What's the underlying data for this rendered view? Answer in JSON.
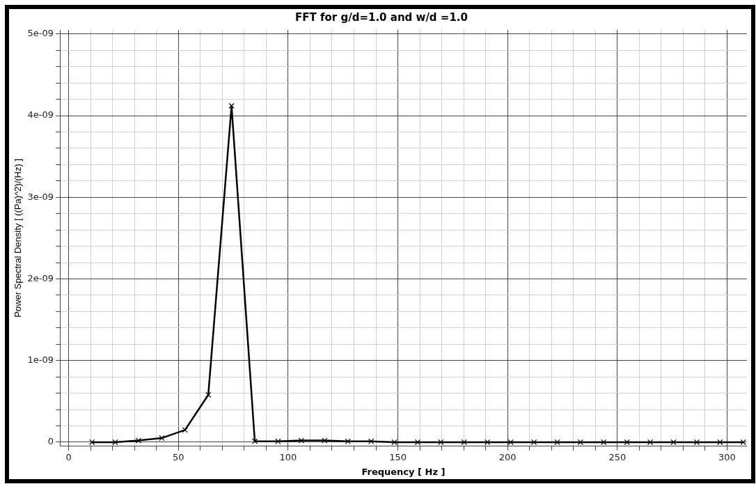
{
  "chart_data": {
    "type": "line",
    "title": "FFT for g/d=1.0 and w/d =1.0",
    "xlabel": "Frequency [ Hz ]",
    "ylabel": "Power Spectral Density [ ((Pa)^2)/(Hz) ]",
    "x": [
      10.6,
      21.2,
      31.8,
      42.4,
      53,
      63.6,
      74.2,
      84.8,
      95.4,
      106,
      116.6,
      127.2,
      137.8,
      148.4,
      159,
      169.6,
      180.2,
      190.8,
      201.4,
      212,
      222.6,
      233.2,
      243.8,
      254.4,
      265,
      275.6,
      286.2,
      296.8,
      307.4
    ],
    "series": [
      {
        "color": "#000000",
        "values": [
          0,
          0,
          2e-11,
          5e-11,
          1.5e-10,
          5.8e-10,
          4.12e-09,
          1e-11,
          1e-11,
          2e-11,
          2e-11,
          1e-11,
          1e-11,
          0,
          0,
          0,
          0,
          0,
          0,
          0,
          0,
          0,
          0,
          0,
          0,
          0,
          0,
          0,
          0
        ]
      }
    ],
    "xlim": [
      -4,
      309
    ],
    "xticks": [
      0,
      {
        "value": 10,
        "label": null
      },
      {
        "value": 20,
        "label": null
      },
      {
        "value": 30,
        "label": null
      },
      {
        "value": 40,
        "label": null
      },
      50,
      {
        "value": 60,
        "label": null
      },
      {
        "value": 70,
        "label": null
      },
      {
        "value": 80,
        "label": null
      },
      {
        "value": 90,
        "label": null
      },
      100,
      {
        "value": 110,
        "label": null
      },
      {
        "value": 120,
        "label": null
      },
      {
        "value": 130,
        "label": null
      },
      {
        "value": 140,
        "label": null
      },
      150,
      {
        "value": 160,
        "label": null
      },
      {
        "value": 170,
        "label": null
      },
      {
        "value": 180,
        "label": null
      },
      {
        "value": 190,
        "label": null
      },
      200,
      {
        "value": 210,
        "label": null
      },
      {
        "value": 220,
        "label": null
      },
      {
        "value": 230,
        "label": null
      },
      {
        "value": 240,
        "label": null
      },
      250,
      {
        "value": 260,
        "label": null
      },
      {
        "value": 270,
        "label": null
      },
      {
        "value": 280,
        "label": null
      },
      {
        "value": 290,
        "label": null
      },
      300
    ],
    "ylim": [
      -5e-11,
      5.05e-09
    ],
    "yticks": [
      0,
      {
        "value": 2e-10,
        "label": null
      },
      {
        "value": 4e-10,
        "label": null
      },
      {
        "value": 6e-10,
        "label": null
      },
      {
        "value": 8e-10,
        "label": null
      },
      {
        "value": 1e-09,
        "label": "1e-09"
      },
      {
        "value": 1.2e-09,
        "label": null
      },
      {
        "value": 1.4e-09,
        "label": null
      },
      {
        "value": 1.6e-09,
        "label": null
      },
      {
        "value": 1.8e-09,
        "label": null
      },
      {
        "value": 2e-09,
        "label": "2e-09"
      },
      {
        "value": 2.2e-09,
        "label": null
      },
      {
        "value": 2.4e-09,
        "label": null
      },
      {
        "value": 2.6e-09,
        "label": null
      },
      {
        "value": 2.8e-09,
        "label": null
      },
      {
        "value": 3e-09,
        "label": "3e-09"
      },
      {
        "value": 3.2e-09,
        "label": null
      },
      {
        "value": 3.4e-09,
        "label": null
      },
      {
        "value": 3.6e-09,
        "label": null
      },
      {
        "value": 3.8e-09,
        "label": null
      },
      {
        "value": 4e-09,
        "label": "4e-09"
      },
      {
        "value": 4.2e-09,
        "label": null
      },
      {
        "value": 4.4e-09,
        "label": null
      },
      {
        "value": 4.6e-09,
        "label": null
      },
      {
        "value": 4.8e-09,
        "label": null
      },
      {
        "value": 5e-09,
        "label": "5e-09"
      }
    ],
    "grid": true,
    "legend": false,
    "marker": "cross",
    "line_style": "solid"
  }
}
